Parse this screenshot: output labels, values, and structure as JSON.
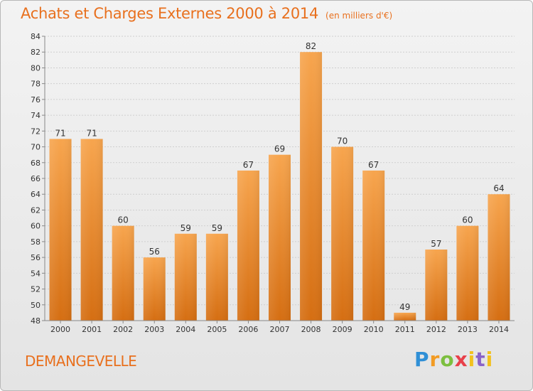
{
  "header": {
    "title": "Achats et Charges Externes 2000 à 2014",
    "subtitle": "(en milliers d'€)"
  },
  "footer": {
    "place": "DEMANGEVELLE",
    "logo": "Proxiti"
  },
  "colors": {
    "bar_top": "#f7a54e",
    "bar_bottom": "#d56e12",
    "title": "#e8701e",
    "grid": "#cfcfcf"
  },
  "chart_data": {
    "type": "bar",
    "categories": [
      "2000",
      "2001",
      "2002",
      "2003",
      "2004",
      "2005",
      "2006",
      "2007",
      "2008",
      "2009",
      "2010",
      "2011",
      "2012",
      "2013",
      "2014"
    ],
    "values": [
      71,
      71,
      60,
      56,
      59,
      59,
      67,
      69,
      82,
      70,
      67,
      49,
      57,
      60,
      64
    ],
    "ylim": [
      48,
      84
    ],
    "yticks": [
      48,
      50,
      52,
      54,
      56,
      58,
      60,
      62,
      64,
      66,
      68,
      70,
      72,
      74,
      76,
      78,
      80,
      82,
      84
    ],
    "grid": true,
    "data_labels": true
  }
}
